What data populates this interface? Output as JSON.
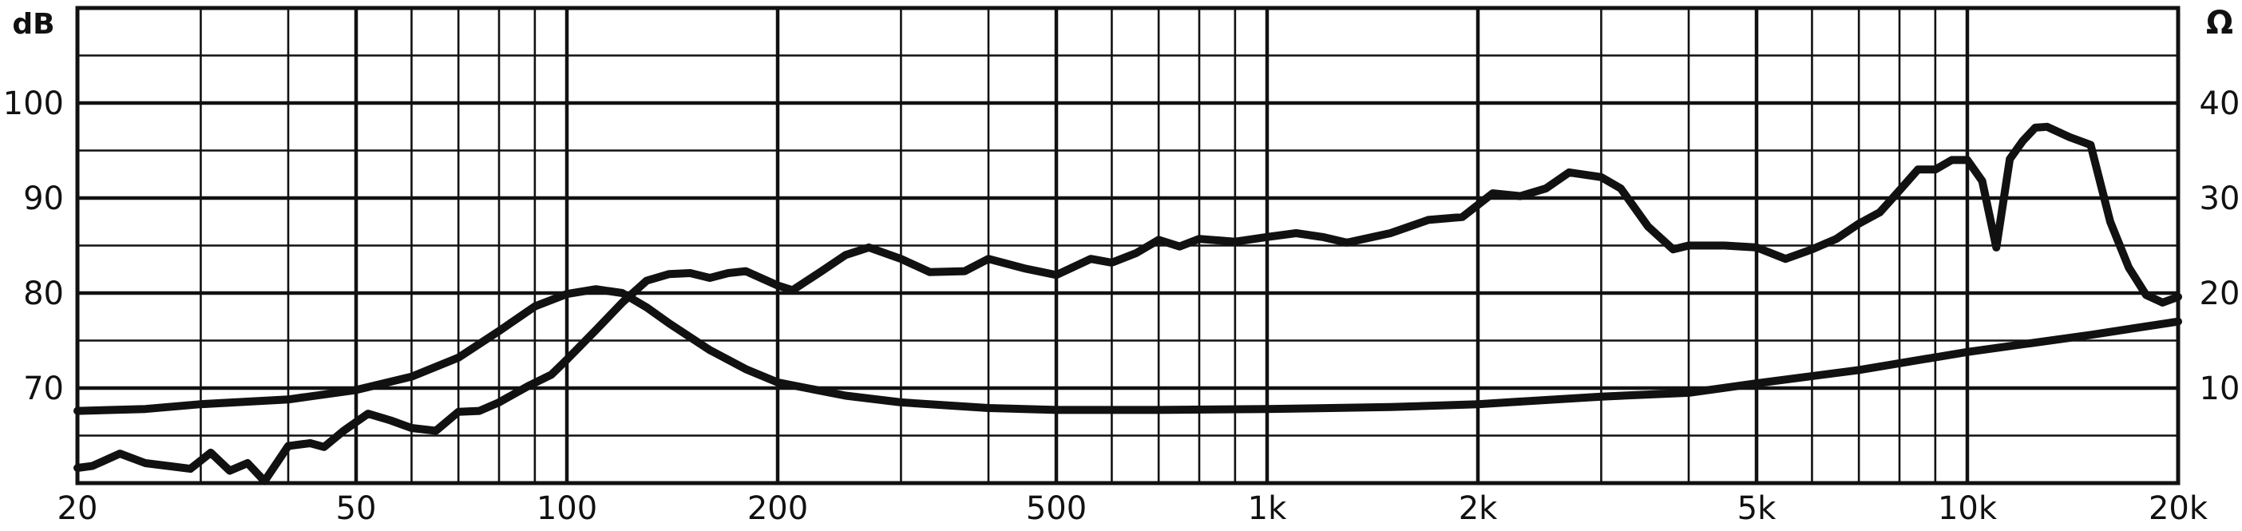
{
  "chart_data": {
    "type": "line",
    "title": "",
    "xscale": "log",
    "xlim": [
      20,
      20000
    ],
    "xticks": [
      20,
      50,
      100,
      200,
      500,
      1000,
      2000,
      5000,
      10000,
      20000
    ],
    "xtick_labels": [
      "20",
      "50",
      "100",
      "200",
      "500",
      "1k",
      "2k",
      "5k",
      "10k",
      "20k"
    ],
    "y_left": {
      "label": "dB",
      "lim": [
        60,
        110
      ],
      "ticks": [
        70,
        80,
        90,
        100
      ],
      "tick_labels": [
        "70",
        "80",
        "90",
        "100"
      ]
    },
    "y_right": {
      "label": "Ω",
      "lim": [
        0,
        50
      ],
      "ticks": [
        10,
        20,
        30,
        40
      ],
      "tick_labels": [
        "10",
        "20",
        "30",
        "40"
      ]
    },
    "grid": true,
    "series": [
      {
        "axis": "left",
        "x": [
          20,
          21,
          23,
          25,
          27,
          29,
          31,
          33,
          35,
          37,
          40,
          43,
          45,
          48,
          52,
          56,
          60,
          65,
          70,
          75,
          80,
          88,
          95,
          100,
          110,
          120,
          130,
          140,
          150,
          160,
          170,
          180,
          200,
          210,
          230,
          250,
          270,
          300,
          330,
          370,
          400,
          450,
          500,
          560,
          600,
          650,
          700,
          750,
          800,
          900,
          1000,
          1100,
          1200,
          1300,
          1500,
          1700,
          1900,
          2100,
          2300,
          2500,
          2700,
          3000,
          3200,
          3500,
          3800,
          4000,
          4500,
          5000,
          5500,
          6000,
          6500,
          7000,
          7500,
          8000,
          8500,
          9000,
          9500,
          10000,
          10500,
          11000,
          11500,
          12000,
          12500,
          13000,
          14000,
          15000,
          16000,
          17000,
          18000,
          19000,
          20000
        ],
        "y": [
          61.6,
          61.8,
          63.1,
          62.1,
          61.8,
          61.5,
          63.2,
          61.3,
          62.1,
          60.2,
          63.9,
          64.2,
          63.8,
          65.5,
          67.3,
          66.6,
          65.8,
          65.5,
          67.5,
          67.6,
          68.5,
          70.2,
          71.4,
          73.0,
          76.1,
          79.0,
          81.3,
          82.0,
          82.1,
          81.6,
          82.1,
          82.3,
          80.8,
          80.3,
          82.2,
          84.0,
          84.8,
          83.6,
          82.2,
          82.3,
          83.6,
          82.6,
          81.9,
          83.6,
          83.2,
          84.2,
          85.6,
          84.9,
          85.7,
          85.4,
          85.9,
          86.3,
          85.9,
          85.3,
          86.3,
          87.7,
          88.0,
          90.5,
          90.2,
          91.0,
          92.7,
          92.2,
          91.0,
          87.0,
          84.6,
          85.0,
          85.0,
          84.8,
          83.6,
          84.6,
          85.7,
          87.3,
          88.5,
          90.8,
          93.0,
          93.0,
          94.0,
          94.0,
          91.8,
          84.8,
          94.1,
          96.0,
          97.4,
          97.5,
          96.4,
          95.6,
          87.5,
          82.7,
          79.8,
          79.0,
          79.6
        ]
      },
      {
        "axis": "right",
        "x": [
          20,
          25,
          30,
          40,
          50,
          60,
          70,
          80,
          90,
          100,
          110,
          120,
          130,
          140,
          160,
          180,
          200,
          250,
          300,
          400,
          500,
          700,
          1000,
          1500,
          2000,
          3000,
          4000,
          5000,
          7000,
          10000,
          15000,
          20000
        ],
        "y": [
          7.6,
          7.8,
          8.3,
          8.8,
          9.8,
          11.2,
          13.2,
          16.0,
          18.6,
          19.9,
          20.4,
          20.0,
          18.5,
          16.8,
          14.0,
          12.0,
          10.6,
          9.2,
          8.5,
          7.9,
          7.7,
          7.7,
          7.8,
          8.0,
          8.3,
          9.1,
          9.5,
          10.5,
          11.9,
          13.8,
          15.6,
          17.0
        ]
      }
    ]
  }
}
